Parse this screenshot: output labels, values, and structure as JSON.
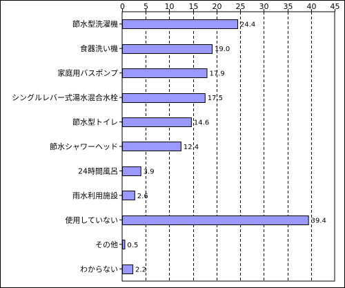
{
  "chart_data": {
    "type": "bar",
    "orientation": "horizontal",
    "title": "",
    "xlabel": "",
    "ylabel": "",
    "xlim": [
      0,
      45
    ],
    "x_ticks": [
      0,
      5,
      10,
      15,
      20,
      25,
      30,
      35,
      40,
      45
    ],
    "grid": "vertical dashed",
    "categories": [
      "節水型洗濯機",
      "食器洗い機",
      "家庭用バスポンプ",
      "シングルレバー式湯水混合水栓",
      "節水型トイレ",
      "節水シャワーヘッド",
      "24時間風呂",
      "雨水利用施設",
      "使用していない",
      "その他",
      "わからない"
    ],
    "values": [
      24.4,
      19.0,
      17.9,
      17.5,
      14.6,
      12.4,
      3.9,
      2.6,
      39.4,
      0.5,
      2.2
    ],
    "value_labels": [
      "24.4",
      "19.0",
      "17.9",
      "17.5",
      "14.6",
      "12.4",
      "3.9",
      "2.6",
      "39.4",
      "0.5",
      "2.2"
    ],
    "colors": {
      "bar_fill": "#9999ff",
      "bar_stroke": "#000000",
      "grid": "#000000"
    }
  }
}
